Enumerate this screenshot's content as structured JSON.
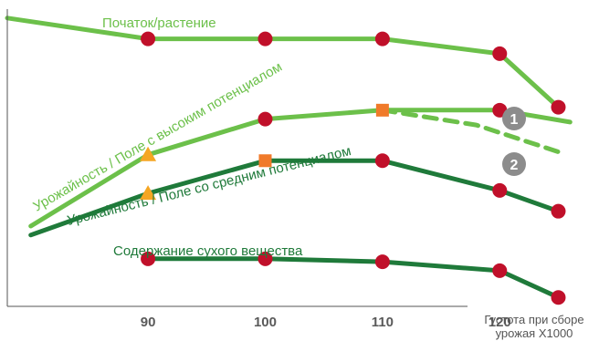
{
  "chart_data": {
    "type": "line",
    "x_axis": {
      "label_lines": [
        "Густота при сборе",
        "урожая X1000"
      ],
      "ticks": [
        90,
        100,
        110,
        120
      ],
      "range": [
        78,
        128
      ]
    },
    "y_axis": {
      "range": [
        0,
        100
      ],
      "ticks_printed": false
    },
    "grid": false,
    "colors": {
      "light_green": "#6cc04a",
      "dark_green": "#1f7a3a",
      "marker_red": "#c0102a",
      "marker_orange": "#f07a2a",
      "marker_yellow": "#f5a623",
      "badge_gray": "#8c8c8c"
    },
    "series": [
      {
        "name": "Початок/растение",
        "color_key": "light_green",
        "style": "solid",
        "x": [
          78,
          90,
          100,
          110,
          120,
          125
        ],
        "y": [
          97,
          90,
          90,
          90,
          85,
          67
        ],
        "markers": [
          {
            "x": 90,
            "y": 90,
            "shape": "circle"
          },
          {
            "x": 100,
            "y": 90,
            "shape": "circle"
          },
          {
            "x": 110,
            "y": 90,
            "shape": "circle"
          },
          {
            "x": 120,
            "y": 85,
            "shape": "circle"
          },
          {
            "x": 125,
            "y": 67,
            "shape": "circle"
          }
        ]
      },
      {
        "name": "Урожайность / Поле с высоким потенциалом",
        "color_key": "light_green",
        "style": "solid",
        "badge": "1",
        "x": [
          80,
          90,
          100,
          110,
          120,
          126
        ],
        "y": [
          27,
          51,
          63,
          66,
          66,
          62
        ],
        "markers": [
          {
            "x": 90,
            "y": 51,
            "shape": "triangle",
            "color_key": "marker_yellow"
          },
          {
            "x": 100,
            "y": 63,
            "shape": "circle"
          },
          {
            "x": 110,
            "y": 66,
            "shape": "square",
            "color_key": "marker_orange"
          },
          {
            "x": 120,
            "y": 66,
            "shape": "circle"
          }
        ]
      },
      {
        "name": "",
        "color_key": "light_green",
        "style": "dashed",
        "badge": "2",
        "x": [
          110,
          118,
          125
        ],
        "y": [
          66,
          61,
          52
        ],
        "markers": []
      },
      {
        "name": "Урожайность / Поле со средним потенциалом",
        "color_key": "dark_green",
        "style": "solid",
        "x": [
          80,
          90,
          100,
          110,
          120,
          125
        ],
        "y": [
          24,
          38,
          49,
          49,
          39,
          32
        ],
        "markers": [
          {
            "x": 90,
            "y": 38,
            "shape": "triangle",
            "color_key": "marker_yellow"
          },
          {
            "x": 100,
            "y": 49,
            "shape": "square",
            "color_key": "marker_orange"
          },
          {
            "x": 110,
            "y": 49,
            "shape": "circle"
          },
          {
            "x": 120,
            "y": 39,
            "shape": "circle"
          },
          {
            "x": 125,
            "y": 32,
            "shape": "circle"
          }
        ]
      },
      {
        "name": "Содержание сухого вещества",
        "color_key": "dark_green",
        "style": "solid",
        "x": [
          90,
          100,
          110,
          120,
          125
        ],
        "y": [
          16,
          16,
          15,
          12,
          3
        ],
        "markers": [
          {
            "x": 90,
            "y": 16,
            "shape": "circle"
          },
          {
            "x": 100,
            "y": 16,
            "shape": "circle"
          },
          {
            "x": 110,
            "y": 15,
            "shape": "circle"
          },
          {
            "x": 120,
            "y": 12,
            "shape": "circle"
          },
          {
            "x": 125,
            "y": 3,
            "shape": "circle"
          }
        ]
      }
    ]
  }
}
